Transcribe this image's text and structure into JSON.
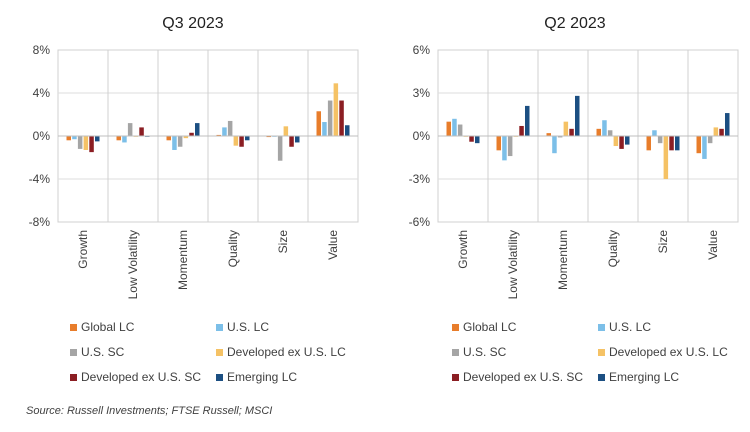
{
  "chart_data": [
    {
      "type": "bar",
      "title": "Q3 2023",
      "categories": [
        "Growth",
        "Low Volatility",
        "Momentum",
        "Quality",
        "Size",
        "Value"
      ],
      "yticks": [
        "8%",
        "4%",
        "0%",
        "-4%",
        "-8%"
      ],
      "ylim": [
        -8,
        8
      ],
      "unit": "%",
      "series": [
        {
          "name": "Global LC",
          "values": [
            -0.4,
            -0.4,
            -0.4,
            0.1,
            -0.1,
            2.3
          ]
        },
        {
          "name": "U.S. LC",
          "values": [
            -0.3,
            -0.6,
            -1.3,
            0.8,
            0.0,
            1.3
          ]
        },
        {
          "name": "U.S. SC",
          "values": [
            -1.2,
            1.2,
            -1.0,
            1.4,
            -2.3,
            3.3
          ]
        },
        {
          "name": "Developed ex U.S. LC",
          "values": [
            -1.3,
            0.0,
            -0.2,
            -0.9,
            0.9,
            4.9
          ]
        },
        {
          "name": "Developed ex U.S. SC",
          "values": [
            -1.5,
            0.8,
            0.3,
            -1.0,
            -1.0,
            3.3
          ]
        },
        {
          "name": "Emerging LC",
          "values": [
            -0.5,
            0.0,
            1.2,
            -0.4,
            -0.6,
            1.0
          ]
        }
      ]
    },
    {
      "type": "bar",
      "title": "Q2 2023",
      "categories": [
        "Growth",
        "Low Volatility",
        "Momentum",
        "Quality",
        "Size",
        "Value"
      ],
      "yticks": [
        "6%",
        "3%",
        "0%",
        "-3%",
        "-6%"
      ],
      "ylim": [
        -6,
        6
      ],
      "unit": "%",
      "series": [
        {
          "name": "Global LC",
          "values": [
            1.0,
            -1.0,
            0.2,
            0.5,
            -1.0,
            -1.2
          ]
        },
        {
          "name": "U.S. LC",
          "values": [
            1.2,
            -1.7,
            -1.2,
            1.1,
            0.4,
            -1.6
          ]
        },
        {
          "name": "U.S. SC",
          "values": [
            0.8,
            -1.4,
            -0.1,
            0.4,
            -0.5,
            -0.5
          ]
        },
        {
          "name": "Developed ex U.S. LC",
          "values": [
            0.0,
            0.0,
            1.0,
            -0.7,
            -3.0,
            0.6
          ]
        },
        {
          "name": "Developed ex U.S. SC",
          "values": [
            -0.4,
            0.7,
            0.5,
            -0.9,
            -1.0,
            0.5
          ]
        },
        {
          "name": "Emerging LC",
          "values": [
            -0.5,
            2.1,
            2.8,
            -0.6,
            -1.0,
            1.6
          ]
        }
      ]
    }
  ],
  "colors": [
    "#e87d2b",
    "#7cbfe8",
    "#a5a5a5",
    "#f5c265",
    "#8b1e23",
    "#1c4f82"
  ],
  "legend": [
    "Global LC",
    "U.S. LC",
    "U.S. SC",
    "Developed ex U.S. LC",
    "Developed ex U.S. SC",
    "Emerging LC"
  ],
  "source": "Source: Russell Investments; FTSE Russell; MSCI"
}
